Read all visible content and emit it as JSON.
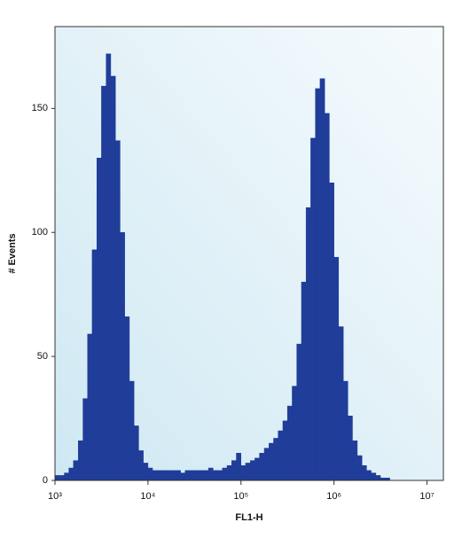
{
  "chart_data": {
    "type": "histogram",
    "xlabel": "FL1-H",
    "ylabel": "# Events",
    "xscale": "log",
    "color": "#1f3d99",
    "xlim": [
      1000,
      15000000
    ],
    "ylim": [
      0,
      183
    ],
    "xticks": [
      {
        "value": 1000,
        "label": "10³"
      },
      {
        "value": 10000,
        "label": "10⁴"
      },
      {
        "value": 100000,
        "label": "10⁵"
      },
      {
        "value": 1000000,
        "label": "10⁶"
      },
      {
        "value": 10000000,
        "label": "10⁷"
      }
    ],
    "yticks": [
      0,
      50,
      100,
      150
    ],
    "bins": [
      1000,
      1120,
      1260,
      1410,
      1580,
      1780,
      2000,
      2240,
      2510,
      2820,
      3160,
      3550,
      3980,
      4470,
      5010,
      5620,
      6310,
      7080,
      7940,
      8910,
      10000,
      11200,
      12600,
      14100,
      15800,
      17800,
      20000,
      22400,
      25100,
      28200,
      31600,
      35500,
      39800,
      44700,
      50100,
      56200,
      63100,
      70800,
      79400,
      89100,
      100000,
      112000,
      126000,
      141000,
      158000,
      178000,
      200000,
      224000,
      251000,
      282000,
      316000,
      355000,
      398000,
      447000,
      501000,
      562000,
      631000,
      708000,
      794000,
      891000,
      1000000,
      1120000,
      1260000,
      1410000,
      1580000,
      1780000,
      2000000,
      2240000,
      2510000,
      2820000,
      3160000,
      3550000,
      3980000,
      4470000,
      5010000,
      5620000,
      6310000,
      7080000,
      7940000,
      8910000,
      10000000
    ],
    "counts": [
      2,
      2,
      3,
      5,
      8,
      16,
      33,
      59,
      93,
      130,
      159,
      172,
      163,
      137,
      100,
      66,
      40,
      22,
      12,
      7,
      5,
      4,
      4,
      4,
      4,
      4,
      4,
      3,
      4,
      4,
      4,
      4,
      4,
      5,
      4,
      4,
      5,
      6,
      8,
      11,
      6,
      7,
      8,
      9,
      11,
      13,
      15,
      17,
      20,
      24,
      30,
      38,
      55,
      80,
      110,
      138,
      158,
      162,
      148,
      120,
      90,
      62,
      40,
      26,
      16,
      10,
      6,
      4,
      3,
      2,
      1,
      1,
      0,
      0,
      0,
      0,
      0,
      0,
      0,
      0
    ]
  }
}
